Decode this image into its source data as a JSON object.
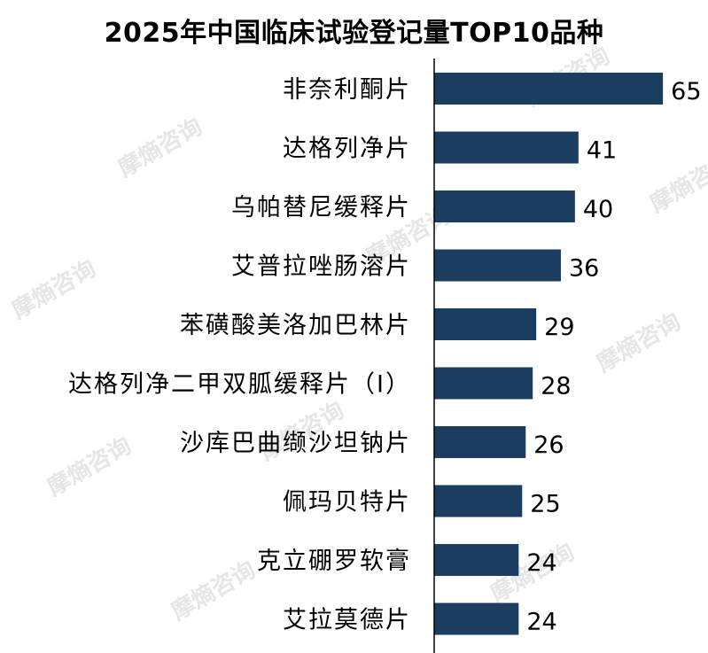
{
  "chart_data": {
    "type": "bar",
    "orientation": "horizontal",
    "title": "2025年中国临床试验登记量TOP10品种",
    "categories": [
      "非奈利酮片",
      "达格列净片",
      "乌帕替尼缓释片",
      "艾普拉唑肠溶片",
      "苯磺酸美洛加巴林片",
      "达格列净二甲双胍缓释片（Ⅰ）",
      "沙库巴曲缬沙坦钠片",
      "佩玛贝特片",
      "克立硼罗软膏",
      "艾拉莫德片"
    ],
    "values": [
      65,
      41,
      40,
      36,
      29,
      28,
      26,
      25,
      24,
      24
    ],
    "data_labels": [
      "65",
      "41",
      "40",
      "36",
      "29",
      "28",
      "26",
      "25",
      "24",
      "24"
    ],
    "xlim": [
      0,
      70
    ],
    "grid": false,
    "legend": "none",
    "bar_color": "#1b3d5f",
    "axis_color": "#000000"
  },
  "watermark": {
    "text": "摩熵咨询",
    "color": "#e6e6e6"
  }
}
